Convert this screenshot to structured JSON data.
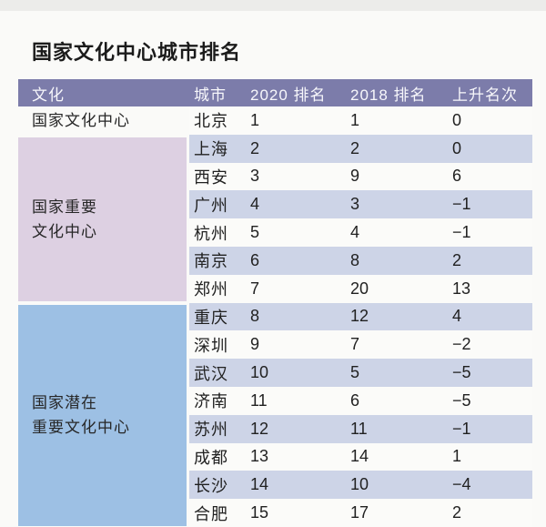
{
  "title": "国家文化中心城市排名",
  "colors": {
    "header_bg": "#7c7caa",
    "header_text": "#f7f7fb",
    "stripe_row": "#cdd4e7",
    "plain_row": "#fbfbf9",
    "category_tier1": "transparent",
    "category_tier2_pink": "#ddd0e2",
    "category_tier3_blue": "#9dc0e4",
    "body_text": "#212121"
  },
  "table": {
    "headers": [
      "文化",
      "城市",
      "2020 排名",
      "2018 排名",
      "上升名次"
    ],
    "groups": [
      {
        "category": "国家文化中心",
        "category_lines": [
          "国家文化中心"
        ],
        "block_color": "transparent",
        "rows": [
          [
            "北京",
            "1",
            "1",
            "0"
          ]
        ]
      },
      {
        "category": "国家重要文化中心",
        "category_lines": [
          "国家重要",
          "文化中心"
        ],
        "block_color": "#ddd0e2",
        "rows": [
          [
            "上海",
            "2",
            "2",
            "0"
          ],
          [
            "西安",
            "3",
            "9",
            "6"
          ],
          [
            "广州",
            "4",
            "3",
            "−1"
          ],
          [
            "杭州",
            "5",
            "4",
            "−1"
          ],
          [
            "南京",
            "6",
            "8",
            "2"
          ],
          [
            "郑州",
            "7",
            "20",
            "13"
          ]
        ]
      },
      {
        "category": "国家潜在重要文化中心",
        "category_lines": [
          "国家潜在",
          "重要文化中心"
        ],
        "block_color": "#9dc0e4",
        "rows": [
          [
            "重庆",
            "8",
            "12",
            "4"
          ],
          [
            "深圳",
            "9",
            "7",
            "−2"
          ],
          [
            "武汉",
            "10",
            "5",
            "−5"
          ],
          [
            "济南",
            "11",
            "6",
            "−5"
          ],
          [
            "苏州",
            "12",
            "11",
            "−1"
          ],
          [
            "成都",
            "13",
            "14",
            "1"
          ],
          [
            "长沙",
            "14",
            "10",
            "−4"
          ],
          [
            "合肥",
            "15",
            "17",
            "2"
          ]
        ]
      }
    ]
  },
  "chart_data": {
    "type": "table",
    "title": "国家文化中心城市排名",
    "columns": [
      "文化",
      "城市",
      "2020 排名",
      "2018 排名",
      "上升名次"
    ],
    "rows": [
      [
        "国家文化中心",
        "北京",
        1,
        1,
        0
      ],
      [
        "国家重要文化中心",
        "上海",
        2,
        2,
        0
      ],
      [
        "国家重要文化中心",
        "西安",
        3,
        9,
        6
      ],
      [
        "国家重要文化中心",
        "广州",
        4,
        3,
        -1
      ],
      [
        "国家重要文化中心",
        "杭州",
        5,
        4,
        -1
      ],
      [
        "国家重要文化中心",
        "南京",
        6,
        8,
        2
      ],
      [
        "国家重要文化中心",
        "郑州",
        7,
        20,
        13
      ],
      [
        "国家潜在重要文化中心",
        "重庆",
        8,
        12,
        4
      ],
      [
        "国家潜在重要文化中心",
        "深圳",
        9,
        7,
        -2
      ],
      [
        "国家潜在重要文化中心",
        "武汉",
        10,
        5,
        -5
      ],
      [
        "国家潜在重要文化中心",
        "济南",
        11,
        6,
        -5
      ],
      [
        "国家潜在重要文化中心",
        "苏州",
        12,
        11,
        -1
      ],
      [
        "国家潜在重要文化中心",
        "成都",
        13,
        14,
        1
      ],
      [
        "国家潜在重要文化中心",
        "长沙",
        14,
        10,
        -4
      ],
      [
        "国家潜在重要文化中心",
        "合肥",
        15,
        17,
        2
      ]
    ]
  }
}
